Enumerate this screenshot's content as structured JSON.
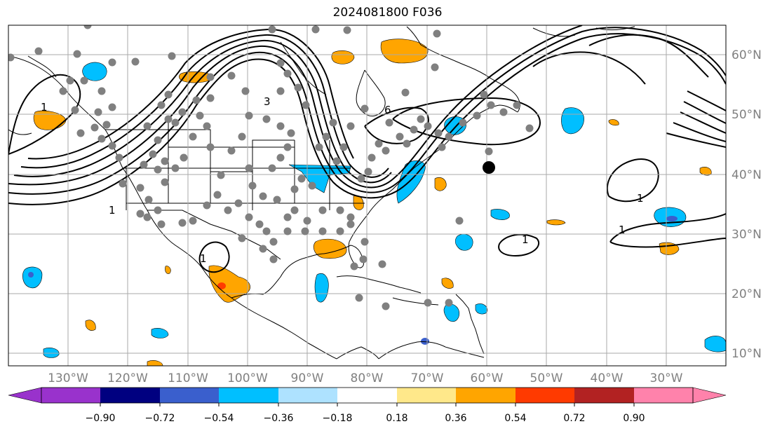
{
  "title": "2024081800 F036",
  "longitude_labels": [
    "130°W",
    "120°W",
    "110°W",
    "100°W",
    "90°W",
    "80°W",
    "70°W",
    "60°W",
    "50°W",
    "40°W",
    "30°W"
  ],
  "latitude_labels": [
    "60°N",
    "50°N",
    "40°N",
    "30°N",
    "20°N",
    "10°N"
  ],
  "contour_labels": [
    "1",
    "1",
    "1",
    "1",
    "1",
    "1",
    "3",
    "6"
  ],
  "colorbar": {
    "tick_labels": [
      "−0.90",
      "−0.72",
      "−0.54",
      "−0.36",
      "−0.18",
      "0.18",
      "0.36",
      "0.54",
      "0.72",
      "0.90"
    ],
    "colors": [
      "#9932cc",
      "#000080",
      "#3a5fcd",
      "#00bfff",
      "#aee2ff",
      "#ffffff",
      "#ffe88a",
      "#ffa500",
      "#ff3a00",
      "#b22222",
      "#ff82ab"
    ]
  },
  "colors": {
    "station_marker": "#808080",
    "target_marker": "#000000",
    "contour": "#000000"
  }
}
